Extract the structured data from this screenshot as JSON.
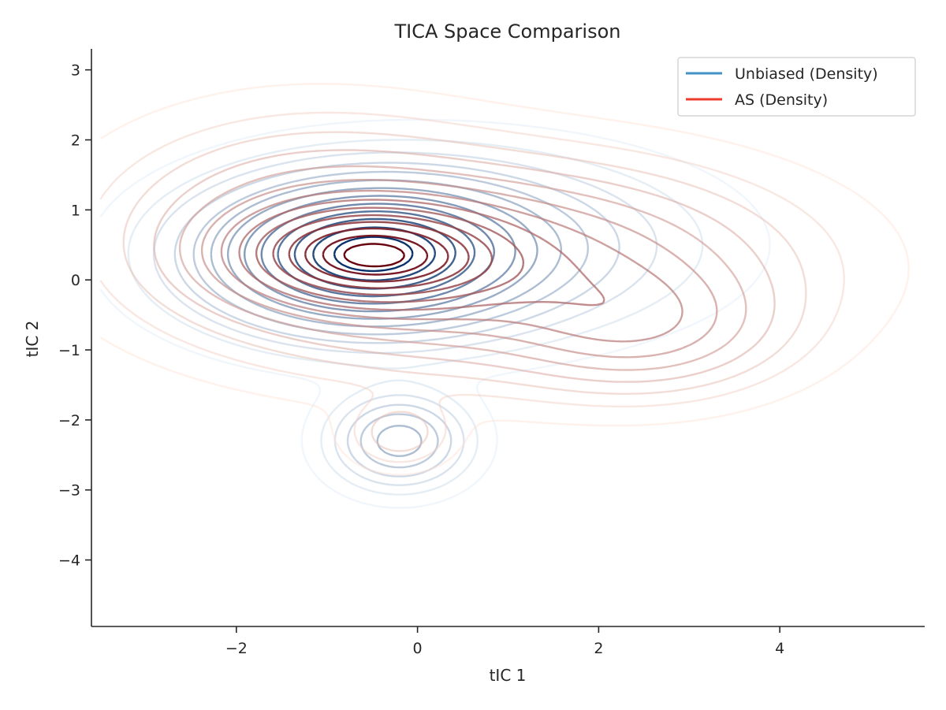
{
  "chart_data": {
    "type": "contour",
    "title": "TICA Space Comparison",
    "xlabel": "tIC 1",
    "ylabel": "tIC 2",
    "xlim": [
      -3.6,
      5.6
    ],
    "ylim": [
      -4.95,
      3.3
    ],
    "xticks": [
      -2,
      0,
      2,
      4
    ],
    "yticks": [
      -4,
      -3,
      -2,
      -1,
      0,
      1,
      2,
      3
    ],
    "xtick_labels": [
      "−2",
      "0",
      "2",
      "4"
    ],
    "ytick_labels": [
      "−4",
      "−3",
      "−2",
      "−1",
      "0",
      "1",
      "2",
      "3"
    ],
    "grid": false,
    "legend": {
      "placement": "top-right",
      "entries": [
        {
          "label": "Unbiased (Density)",
          "color": "#4292c6"
        },
        {
          "label": "AS (Density)",
          "color": "#ef3b2c"
        }
      ]
    },
    "series": [
      {
        "name": "Unbiased (Density)",
        "cmap": "Blues",
        "color_light": "#deebf7",
        "color_dark": "#08306b",
        "components": [
          {
            "cx": -0.6,
            "cy": 0.35,
            "sx": 1.05,
            "sy": 0.62,
            "w": 1.0
          },
          {
            "cx": 0.5,
            "cy": 0.5,
            "sx": 1.5,
            "sy": 0.75,
            "w": 0.28
          },
          {
            "cx": -0.2,
            "cy": -2.3,
            "sx": 0.45,
            "sy": 0.4,
            "w": 0.38
          }
        ],
        "levels": [
          0.018,
          0.05,
          0.09,
          0.14,
          0.2,
          0.27,
          0.35,
          0.44,
          0.54,
          0.64,
          0.74,
          0.84,
          0.93
        ]
      },
      {
        "name": "AS (Density)",
        "cmap": "Reds",
        "color_light": "#fee0d2",
        "color_dark": "#67000d",
        "components": [
          {
            "cx": -0.55,
            "cy": 0.35,
            "sx": 0.85,
            "sy": 0.42,
            "w": 1.0
          },
          {
            "cx": 0.9,
            "cy": 0.2,
            "sx": 1.8,
            "sy": 0.85,
            "w": 0.55
          },
          {
            "cx": 2.5,
            "cy": -0.7,
            "sx": 0.9,
            "sy": 0.55,
            "w": 0.3
          },
          {
            "cx": -1.2,
            "cy": 0.8,
            "sx": 1.3,
            "sy": 0.9,
            "w": 0.25
          },
          {
            "cx": -0.2,
            "cy": -2.2,
            "sx": 0.35,
            "sy": 0.3,
            "w": 0.15
          }
        ],
        "levels": [
          0.015,
          0.04,
          0.07,
          0.11,
          0.16,
          0.22,
          0.29,
          0.37,
          0.46,
          0.56,
          0.66,
          0.76,
          0.86,
          0.95
        ]
      }
    ]
  }
}
